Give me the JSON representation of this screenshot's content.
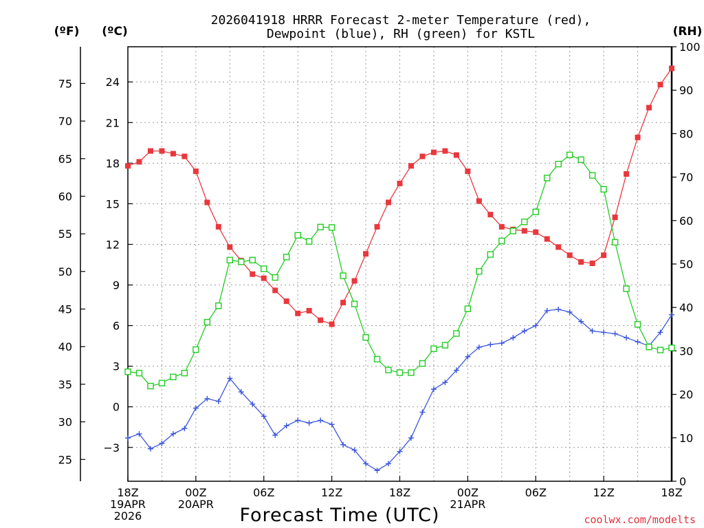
{
  "header": {
    "title_line1": "2026041918 HRRR Forecast 2-meter Temperature (red),",
    "title_line2": "Dewpoint (blue), RH (green) for KSTL"
  },
  "units": {
    "fahrenheit": "(ºF)",
    "celsius": "(ºC)",
    "rh": "(RH)"
  },
  "footer": {
    "x_axis_title": "Forecast Time (UTC)",
    "credit": "coolwx.com/modelts"
  },
  "colors": {
    "temperature": "#e8383d",
    "dewpoint": "#3a55e0",
    "rh": "#22cc22",
    "grid": "#9a9a9a"
  },
  "chart_data": {
    "type": "line",
    "title": "2026041918 HRRR Forecast 2-meter Temperature (red), Dewpoint (blue), RH (green) for KSTL",
    "xlabel": "Forecast Time (UTC)",
    "x": [
      0,
      1,
      2,
      3,
      4,
      5,
      6,
      7,
      8,
      9,
      10,
      11,
      12,
      13,
      14,
      15,
      16,
      17,
      18,
      19,
      20,
      21,
      22,
      23,
      24,
      25,
      26,
      27,
      28,
      29,
      30,
      31,
      32,
      33,
      34,
      35,
      36,
      37,
      38,
      39,
      40,
      41,
      42,
      43,
      44,
      45,
      46,
      47,
      48
    ],
    "xlim": [
      0,
      48
    ],
    "x_ticks": [
      {
        "x": 0,
        "lines": [
          "18Z",
          "19APR",
          "2026"
        ]
      },
      {
        "x": 6,
        "lines": [
          "00Z",
          "20APR"
        ]
      },
      {
        "x": 12,
        "lines": [
          "06Z"
        ]
      },
      {
        "x": 18,
        "lines": [
          "12Z"
        ]
      },
      {
        "x": 24,
        "lines": [
          "18Z"
        ]
      },
      {
        "x": 30,
        "lines": [
          "00Z",
          "21APR"
        ]
      },
      {
        "x": 36,
        "lines": [
          "06Z"
        ]
      },
      {
        "x": 42,
        "lines": [
          "12Z"
        ]
      },
      {
        "x": 48,
        "lines": [
          "18Z"
        ]
      }
    ],
    "ylim_celsius": [
      -5.5,
      26.6
    ],
    "y_ticks_celsius": [
      -3,
      0,
      3,
      6,
      9,
      12,
      15,
      18,
      21,
      24
    ],
    "y_ticks_fahrenheit": [
      25,
      30,
      35,
      40,
      45,
      50,
      55,
      60,
      65,
      70,
      75
    ],
    "ylim_rh": [
      0,
      100
    ],
    "y_ticks_rh": [
      0,
      10,
      20,
      30,
      40,
      50,
      60,
      70,
      80,
      90,
      100
    ],
    "grid": true,
    "series": [
      {
        "name": "Temperature",
        "axis": "celsius",
        "marker": "filled-square",
        "values": [
          17.8,
          18.1,
          18.9,
          18.9,
          18.7,
          18.5,
          17.4,
          15.1,
          13.3,
          11.8,
          10.8,
          9.8,
          9.5,
          8.6,
          7.8,
          6.9,
          7.1,
          6.4,
          6.1,
          7.7,
          9.3,
          11.3,
          13.3,
          15.1,
          16.5,
          17.8,
          18.5,
          18.8,
          18.9,
          18.6,
          17.4,
          15.2,
          14.2,
          13.3,
          13.1,
          13.0,
          12.9,
          12.4,
          11.8,
          11.2,
          10.7,
          10.6,
          11.2,
          14.0,
          17.2,
          19.9,
          22.1,
          23.8,
          25.0
        ]
      },
      {
        "name": "Dewpoint",
        "axis": "celsius",
        "marker": "plus",
        "values": [
          -2.3,
          -2.0,
          -3.1,
          -2.7,
          -2.0,
          -1.6,
          -0.1,
          0.6,
          0.4,
          2.1,
          1.1,
          0.2,
          -0.7,
          -2.1,
          -1.4,
          -1.0,
          -1.2,
          -1.0,
          -1.3,
          -2.8,
          -3.2,
          -4.2,
          -4.7,
          -4.2,
          -3.3,
          -2.3,
          -0.4,
          1.3,
          1.8,
          2.7,
          3.7,
          4.4,
          4.6,
          4.7,
          5.1,
          5.6,
          6.0,
          7.1,
          7.2,
          7.0,
          6.3,
          5.6,
          5.5,
          5.4,
          5.1,
          4.8,
          4.5,
          5.5,
          6.8
        ]
      },
      {
        "name": "RH",
        "axis": "rh",
        "marker": "open-square",
        "values": [
          25.2,
          24.9,
          21.9,
          22.6,
          24.0,
          24.9,
          30.3,
          36.6,
          40.4,
          50.9,
          50.5,
          50.9,
          48.9,
          46.9,
          51.6,
          56.6,
          55.2,
          58.5,
          58.4,
          47.3,
          40.8,
          33.1,
          28.1,
          25.6,
          25.0,
          25.0,
          27.1,
          30.5,
          31.3,
          34.0,
          39.7,
          48.3,
          52.2,
          55.3,
          57.6,
          59.7,
          62.0,
          69.8,
          73.0,
          75.1,
          74.0,
          70.4,
          67.2,
          55.0,
          44.3,
          36.1,
          30.9,
          30.2,
          30.7
        ]
      }
    ]
  }
}
